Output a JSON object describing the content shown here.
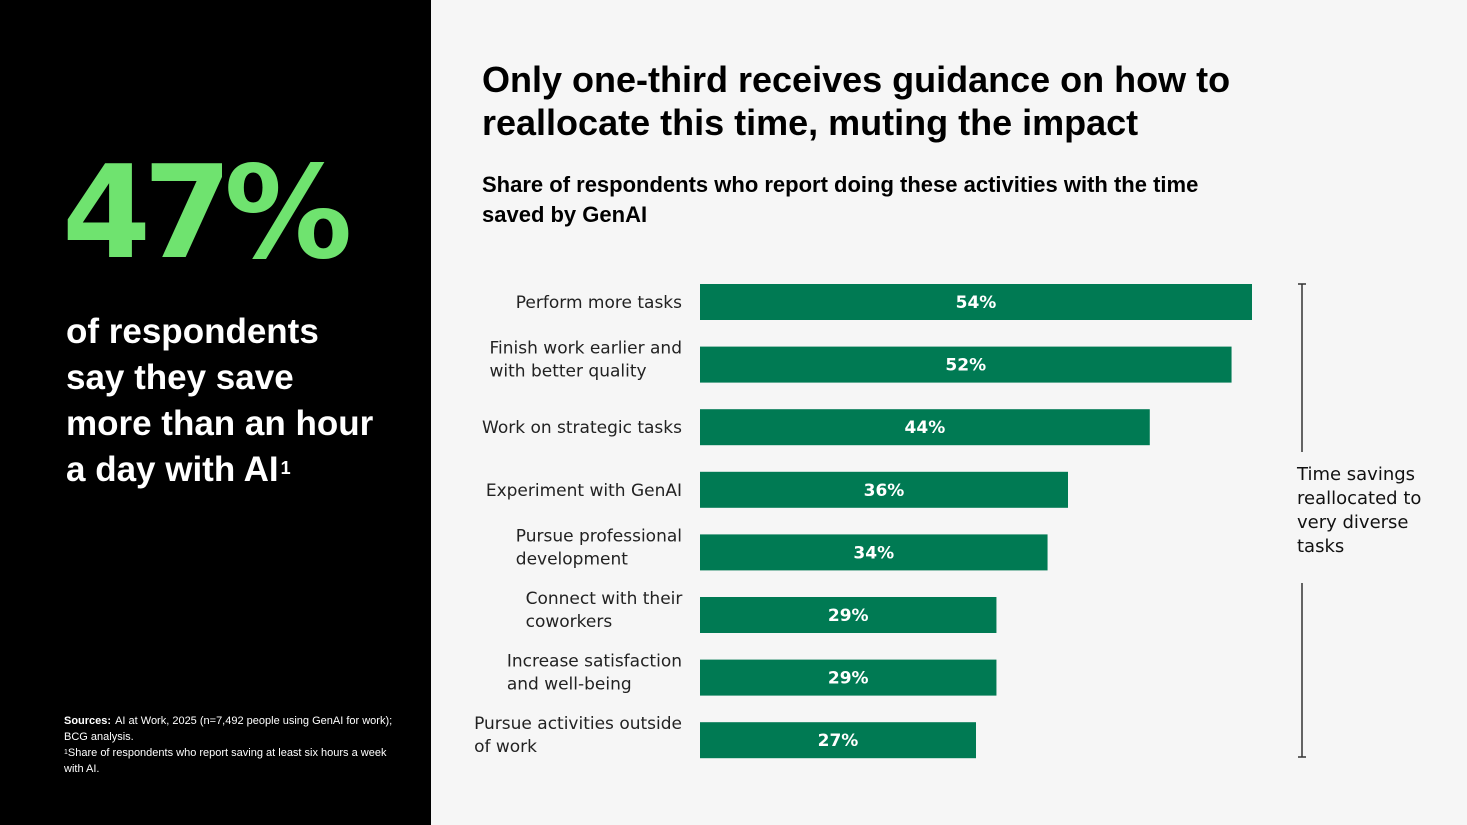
{
  "left": {
    "stat": "47%",
    "caption": "of respondents say they save more than an hour a day with AI",
    "caption_footnote_mark": "1",
    "sources_label": "Sources:",
    "sources_text": "AI at Work, 2025 (n=7,492 people using GenAI for work); BCG analysis.",
    "footnote_mark": "1",
    "footnote_text": "Share of respondents who report saving at least six hours a week with AI."
  },
  "headline": "Only one-third receives guidance on how to reallocate this time, muting the impact",
  "colors": {
    "bar": "#007a53",
    "stat": "#6fe36f",
    "bracket": "#333333"
  },
  "chart_data": {
    "type": "bar",
    "orientation": "horizontal",
    "title": "Share of respondents who report doing these activities with the time saved by GenAI",
    "categories": [
      [
        "Perform more tasks"
      ],
      [
        "Finish work earlier and",
        "with better quality"
      ],
      [
        "Work on strategic tasks"
      ],
      [
        "Experiment with GenAI"
      ],
      [
        "Pursue professional",
        "development"
      ],
      [
        "Connect with their",
        "coworkers"
      ],
      [
        "Increase satisfaction",
        "and well-being"
      ],
      [
        "Pursue activities outside",
        "of work"
      ]
    ],
    "values": [
      54,
      52,
      44,
      36,
      34,
      29,
      29,
      27
    ],
    "value_labels": [
      "54%",
      "52%",
      "44%",
      "36%",
      "34%",
      "29%",
      "29%",
      "27%"
    ],
    "xlim": [
      0,
      54
    ],
    "grid": false,
    "legend": "none",
    "annotation": "Time savings reallocated to very diverse tasks"
  }
}
